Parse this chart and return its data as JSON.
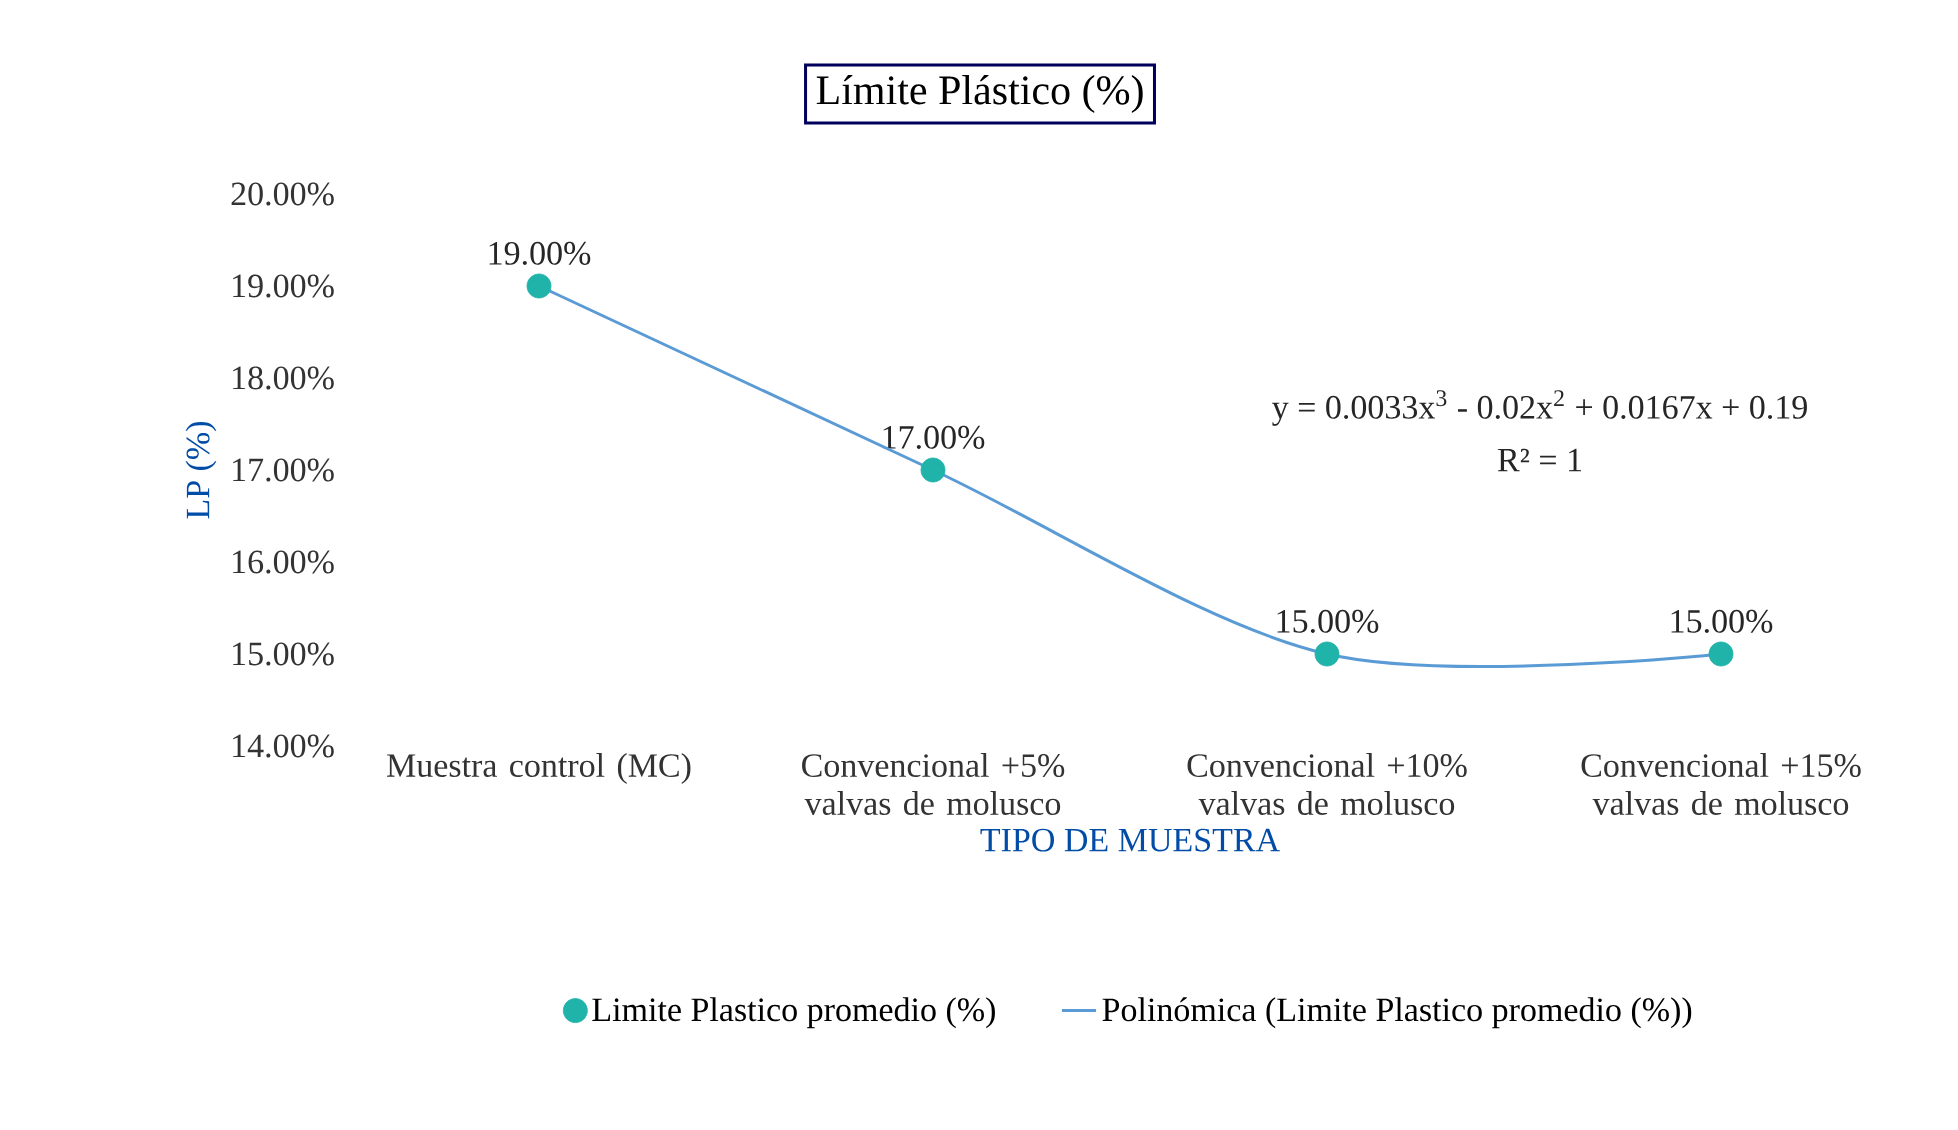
{
  "chart_data": {
    "type": "scatter",
    "title": "Límite Plástico (%)",
    "xlabel": "TIPO DE MUESTRA",
    "ylabel": "LP (%)",
    "categories": [
      "Muestra control (MC)",
      "Convencional +5% valvas de molusco",
      "Convencional +10% valvas de molusco",
      "Convencional +15% valvas de molusco"
    ],
    "ylim": [
      14,
      20
    ],
    "yticks": [
      {
        "value": 14,
        "label": "14.00%"
      },
      {
        "value": 15,
        "label": "15.00%"
      },
      {
        "value": 16,
        "label": "16.00%"
      },
      {
        "value": 17,
        "label": "17.00%"
      },
      {
        "value": 18,
        "label": "18.00%"
      },
      {
        "value": 19,
        "label": "19.00%"
      },
      {
        "value": 20,
        "label": "20.00%"
      }
    ],
    "series": [
      {
        "name": "Limite Plastico promedio (%)",
        "marker": "circle",
        "color": "#1fb3aa",
        "values": [
          19,
          17,
          15,
          15
        ],
        "value_labels": [
          "19.00%",
          "17.00%",
          "15.00%",
          "15.00%"
        ]
      },
      {
        "name": "Polinómica (Limite Plastico promedio (%))",
        "type": "line",
        "marker": "none",
        "color": "#5b9bd5",
        "values": [
          19,
          17,
          15,
          15
        ]
      }
    ],
    "annotations": [
      "y = 0.0033x$^{3}$ - 0.02x$^{2}$ + 0.0167x + 0.19",
      "R² = 1"
    ],
    "legend": "bottom",
    "grid": false
  }
}
